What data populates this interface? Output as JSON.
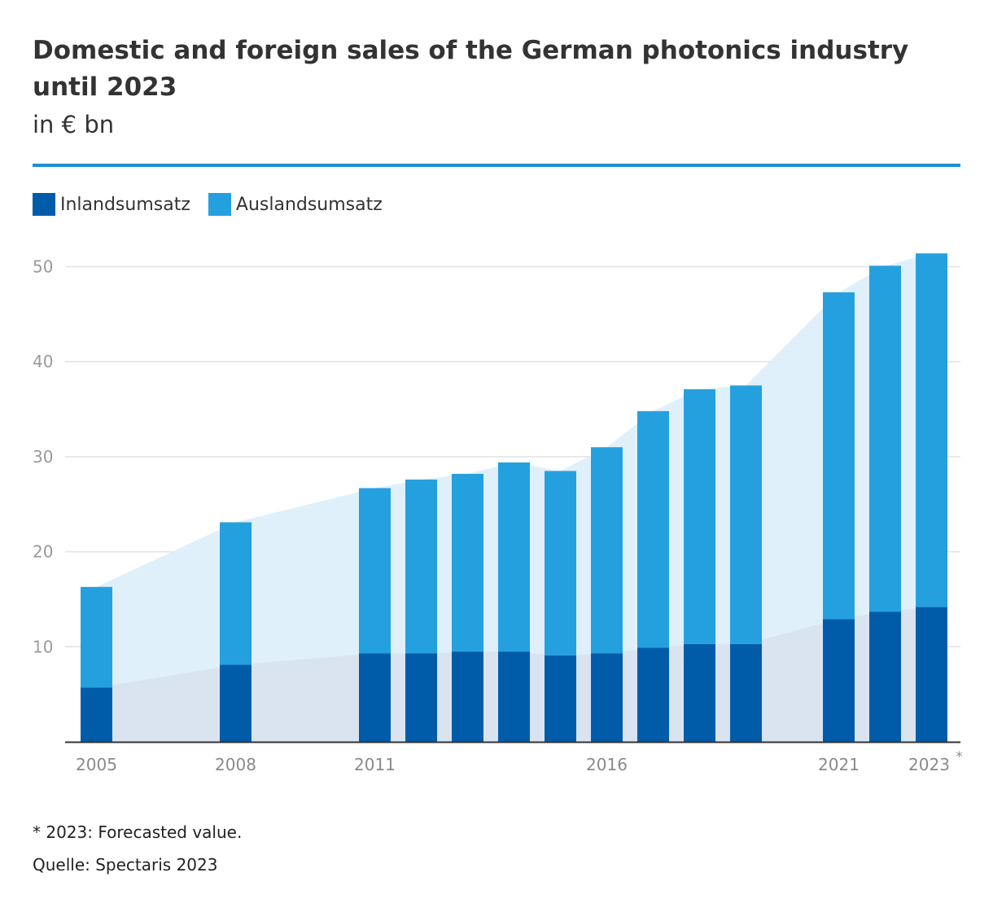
{
  "chart_data": {
    "type": "bar",
    "stacked": true,
    "title": "Domestic and foreign sales of the German photonics industry until 2023",
    "subtitle": "in € bn",
    "categories": [
      "2005",
      "2008",
      "2011",
      "2012",
      "2013",
      "2014",
      "2015",
      "2016",
      "2017",
      "2018",
      "2019",
      "2021",
      "2022",
      "2023"
    ],
    "x_positions": [
      2005,
      2008,
      2011,
      2012,
      2013,
      2014,
      2015,
      2016,
      2017,
      2018,
      2019,
      2021,
      2022,
      2023
    ],
    "xticks": [
      "2005",
      "2008",
      "2011",
      "2016",
      "2021",
      "2023"
    ],
    "xtick_years": [
      2005,
      2008,
      2011,
      2016,
      2021,
      2023
    ],
    "xtick_marker": {
      "year": "2023",
      "marker": "*"
    },
    "yticks": [
      10,
      20,
      30,
      40,
      50
    ],
    "ylim": [
      0,
      55
    ],
    "series": [
      {
        "name": "Inlandsumsatz",
        "color": "#005ca9",
        "values": [
          5.7,
          8.1,
          9.3,
          9.3,
          9.5,
          9.5,
          9.1,
          9.3,
          9.9,
          10.3,
          10.3,
          12.9,
          13.7,
          14.2
        ]
      },
      {
        "name": "Auslandsumsatz",
        "color": "#25a0de",
        "values": [
          10.6,
          15.0,
          17.4,
          18.3,
          18.7,
          19.9,
          19.4,
          21.7,
          24.9,
          26.8,
          27.2,
          34.4,
          36.4,
          37.2
        ]
      }
    ],
    "footnote": "* 2023: Forecasted value.",
    "source": "Quelle: Spectaris 2023"
  }
}
